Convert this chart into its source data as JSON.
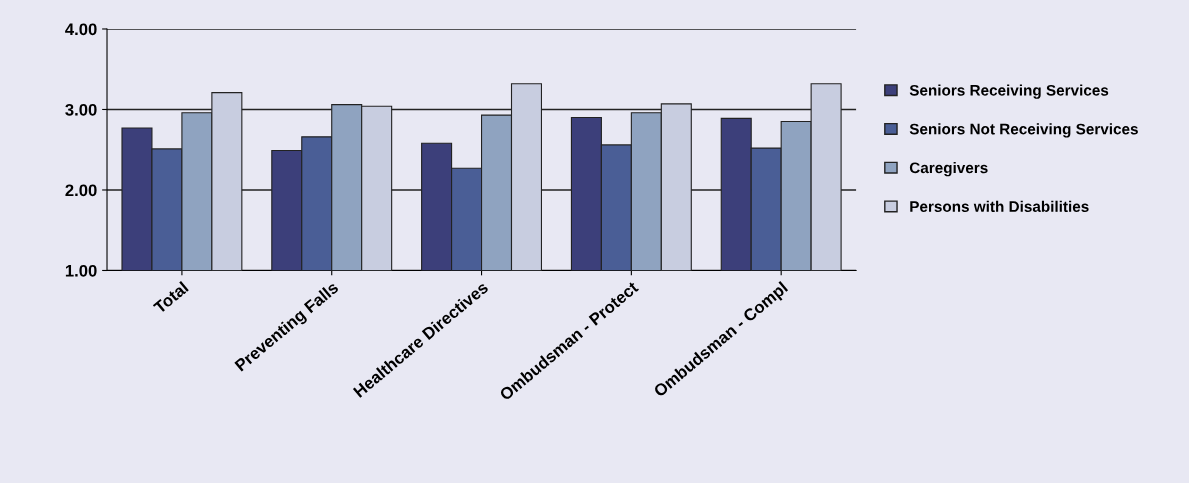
{
  "chart_data": {
    "type": "bar",
    "categories": [
      "Total",
      "Preventing Falls",
      "Healthcare Directives",
      "Ombudsman - Protect",
      "Ombudsman - Compl"
    ],
    "series": [
      {
        "name": "Seniors Receiving Services",
        "color": "#3c3f7a",
        "values": [
          2.77,
          2.49,
          2.58,
          2.9,
          2.89
        ]
      },
      {
        "name": "Seniors Not Receiving Services",
        "color": "#4a5e96",
        "values": [
          2.51,
          2.66,
          2.27,
          2.56,
          2.52
        ]
      },
      {
        "name": "Caregivers",
        "color": "#8fa3c0",
        "values": [
          2.96,
          3.06,
          2.93,
          2.96,
          2.85
        ]
      },
      {
        "name": "Persons with Disabilities",
        "color": "#c8cde0",
        "values": [
          3.21,
          3.04,
          3.32,
          3.07,
          3.32
        ]
      }
    ],
    "ylim": [
      1,
      4
    ],
    "yticks": [
      {
        "value": 1,
        "label": "1.00"
      },
      {
        "value": 2,
        "label": "2.00"
      },
      {
        "value": 3,
        "label": "3.00"
      },
      {
        "value": 4,
        "label": "4.00"
      }
    ],
    "grid": "y",
    "legend": "right"
  }
}
